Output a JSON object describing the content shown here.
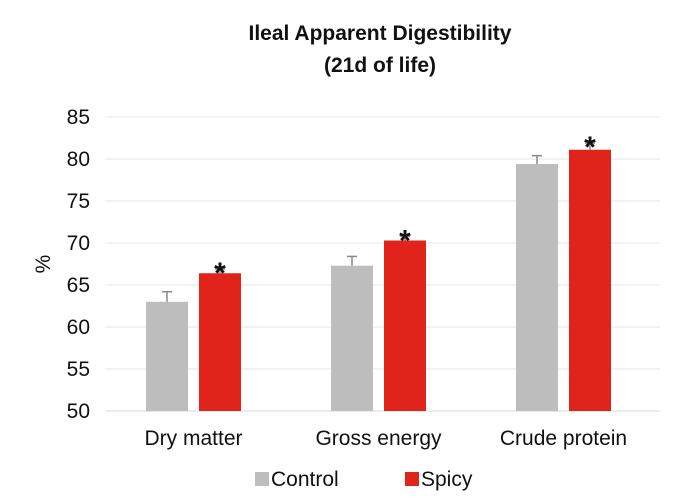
{
  "chart_data": {
    "type": "bar",
    "title": "Ileal Apparent Digestibility",
    "subtitle": "(21d of life)",
    "xlabel": "",
    "ylabel": "%",
    "ylim": [
      50,
      85
    ],
    "yticks": [
      50,
      55,
      60,
      65,
      70,
      75,
      80,
      85
    ],
    "grid": true,
    "legend_position": "bottom",
    "categories": [
      "Dry matter",
      "Gross energy",
      "Crude protein"
    ],
    "series": [
      {
        "name": "Control",
        "color": "#bdbdbd",
        "values": [
          63.0,
          67.3,
          79.4
        ],
        "errors": [
          1.2,
          1.1,
          1.0
        ],
        "significance": [
          "",
          "",
          ""
        ]
      },
      {
        "name": "Spicy",
        "color": "#e0241c",
        "values": [
          66.4,
          70.3,
          81.1
        ],
        "errors": [
          0.5,
          0.5,
          0.8
        ],
        "significance": [
          "*",
          "*",
          "*"
        ]
      }
    ],
    "error_bar_color": "#888888",
    "gridline_color": "#e6e6e6"
  }
}
